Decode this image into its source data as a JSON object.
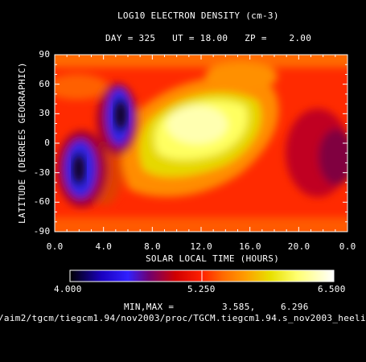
{
  "chart_data": {
    "type": "heatmap",
    "title": "LOG10 ELECTRON DENSITY (cm-3)",
    "subtitle": "DAY = 325   UT = 18.00   ZP =    2.00",
    "xlabel": "SOLAR LOCAL TIME (HOURS)",
    "ylabel": "LATITUDE (DEGREES GEOGRAPHIC)",
    "xlim": [
      0,
      24
    ],
    "ylim": [
      -90,
      90
    ],
    "x_tick_labels": [
      "0.0",
      "4.0",
      "8.0",
      "12.0",
      "16.0",
      "20.0",
      "0.0"
    ],
    "y_tick_labels": [
      "90",
      "60",
      "30",
      "0",
      "-30",
      "-60",
      "-90"
    ],
    "colorbar": {
      "min": 4.0,
      "max": 6.5,
      "tick_labels": [
        "4.000",
        "5.250",
        "6.500"
      ]
    },
    "minmax_label": "MIN,MAX =",
    "min_value": "3.585,",
    "max_value": "6.296",
    "features": [
      {
        "kind": "minimum",
        "x": 2.0,
        "y": -20,
        "value": 3.6
      },
      {
        "kind": "minimum",
        "x": 5.5,
        "y": 35,
        "value": 3.6
      },
      {
        "kind": "maximum",
        "x": 11.5,
        "y": 20,
        "value": 6.3
      }
    ]
  },
  "footer": {
    "path": "/aim2/tgcm/tiegcm1.94/nov2003/proc/TGCM.tiegcm1.94.s_nov2003_heeli"
  }
}
